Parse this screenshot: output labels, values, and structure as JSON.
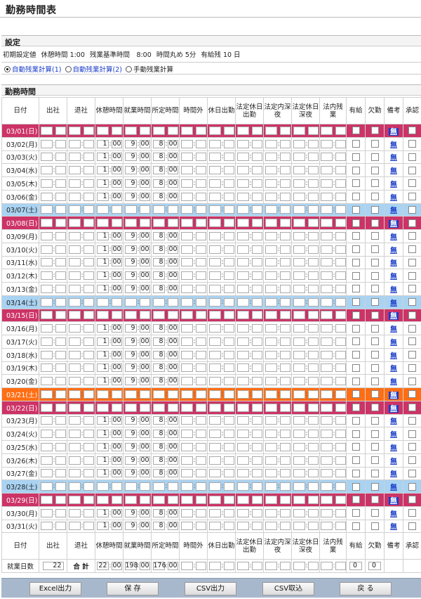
{
  "page_title": "勤務時間表",
  "settings": {
    "section_title": "設定",
    "init_label": "初期設定値",
    "break_time": "休憩時間 1:00",
    "overtime_base": "残業基準時間　8:00",
    "rounding": "時間丸め 5分",
    "paid_leave": "有給残 10 日",
    "radios": [
      {
        "label": "自動残業計算(1)",
        "selected": true
      },
      {
        "label": "自動残業計算(2)",
        "selected": false
      },
      {
        "label": "手動残業計算",
        "selected": false
      }
    ]
  },
  "worktime": {
    "section_title": "勤務時間",
    "headers": [
      "日付",
      "出社",
      "退社",
      "休憩時間",
      "就業時間",
      "所定時間",
      "時間外",
      "休日出勤",
      "法定休日出勤",
      "法定内深夜",
      "法定休日深夜",
      "法内残業",
      "有給",
      "欠勤",
      "備考",
      "承認"
    ],
    "memo_label": "無",
    "rows": [
      {
        "date": "03/01(日)",
        "type": "red"
      },
      {
        "date": "03/02(月)",
        "type": "work",
        "break_h": "1",
        "break_m": "00",
        "work_h": "9",
        "work_m": "00",
        "sched_h": "8",
        "sched_m": "00"
      },
      {
        "date": "03/03(火)",
        "type": "work",
        "break_h": "1",
        "break_m": "00",
        "work_h": "9",
        "work_m": "00",
        "sched_h": "8",
        "sched_m": "00"
      },
      {
        "date": "03/04(水)",
        "type": "work",
        "break_h": "1",
        "break_m": "00",
        "work_h": "9",
        "work_m": "00",
        "sched_h": "8",
        "sched_m": "00"
      },
      {
        "date": "03/05(木)",
        "type": "work",
        "break_h": "1",
        "break_m": "00",
        "work_h": "9",
        "work_m": "00",
        "sched_h": "8",
        "sched_m": "00"
      },
      {
        "date": "03/06(金)",
        "type": "work",
        "break_h": "1",
        "break_m": "00",
        "work_h": "9",
        "work_m": "00",
        "sched_h": "8",
        "sched_m": "00"
      },
      {
        "date": "03/07(土)",
        "type": "blue"
      },
      {
        "date": "03/08(日)",
        "type": "red"
      },
      {
        "date": "03/09(月)",
        "type": "work",
        "break_h": "1",
        "break_m": "00",
        "work_h": "9",
        "work_m": "00",
        "sched_h": "8",
        "sched_m": "00"
      },
      {
        "date": "03/10(火)",
        "type": "work",
        "break_h": "1",
        "break_m": "00",
        "work_h": "9",
        "work_m": "00",
        "sched_h": "8",
        "sched_m": "00"
      },
      {
        "date": "03/11(水)",
        "type": "work",
        "break_h": "1",
        "break_m": "00",
        "work_h": "9",
        "work_m": "00",
        "sched_h": "8",
        "sched_m": "00"
      },
      {
        "date": "03/12(木)",
        "type": "work",
        "break_h": "1",
        "break_m": "00",
        "work_h": "9",
        "work_m": "00",
        "sched_h": "8",
        "sched_m": "00"
      },
      {
        "date": "03/13(金)",
        "type": "work",
        "break_h": "1",
        "break_m": "00",
        "work_h": "9",
        "work_m": "00",
        "sched_h": "8",
        "sched_m": "00"
      },
      {
        "date": "03/14(土)",
        "type": "blue"
      },
      {
        "date": "03/15(日)",
        "type": "red"
      },
      {
        "date": "03/16(月)",
        "type": "work",
        "break_h": "1",
        "break_m": "00",
        "work_h": "9",
        "work_m": "00",
        "sched_h": "8",
        "sched_m": "00"
      },
      {
        "date": "03/17(火)",
        "type": "work",
        "break_h": "1",
        "break_m": "00",
        "work_h": "9",
        "work_m": "00",
        "sched_h": "8",
        "sched_m": "00"
      },
      {
        "date": "03/18(水)",
        "type": "work",
        "break_h": "1",
        "break_m": "00",
        "work_h": "9",
        "work_m": "00",
        "sched_h": "8",
        "sched_m": "00"
      },
      {
        "date": "03/19(木)",
        "type": "work",
        "break_h": "1",
        "break_m": "00",
        "work_h": "9",
        "work_m": "00",
        "sched_h": "8",
        "sched_m": "00"
      },
      {
        "date": "03/20(金)",
        "type": "work",
        "break_h": "1",
        "break_m": "00",
        "work_h": "9",
        "work_m": "00",
        "sched_h": "8",
        "sched_m": "00"
      },
      {
        "date": "03/21(土)",
        "type": "orange"
      },
      {
        "date": "03/22(日)",
        "type": "red"
      },
      {
        "date": "03/23(月)",
        "type": "work",
        "break_h": "1",
        "break_m": "00",
        "work_h": "9",
        "work_m": "00",
        "sched_h": "8",
        "sched_m": "00"
      },
      {
        "date": "03/24(火)",
        "type": "work",
        "break_h": "1",
        "break_m": "00",
        "work_h": "9",
        "work_m": "00",
        "sched_h": "8",
        "sched_m": "00"
      },
      {
        "date": "03/25(水)",
        "type": "work",
        "break_h": "1",
        "break_m": "00",
        "work_h": "9",
        "work_m": "00",
        "sched_h": "8",
        "sched_m": "00"
      },
      {
        "date": "03/26(木)",
        "type": "work",
        "break_h": "1",
        "break_m": "00",
        "work_h": "9",
        "work_m": "00",
        "sched_h": "8",
        "sched_m": "00"
      },
      {
        "date": "03/27(金)",
        "type": "work",
        "break_h": "1",
        "break_m": "00",
        "work_h": "9",
        "work_m": "00",
        "sched_h": "8",
        "sched_m": "00"
      },
      {
        "date": "03/28(土)",
        "type": "blue"
      },
      {
        "date": "03/29(日)",
        "type": "red"
      },
      {
        "date": "03/30(月)",
        "type": "work",
        "break_h": "1",
        "break_m": "00",
        "work_h": "9",
        "work_m": "00",
        "sched_h": "8",
        "sched_m": "00"
      },
      {
        "date": "03/31(火)",
        "type": "work",
        "break_h": "1",
        "break_m": "00",
        "work_h": "9",
        "work_m": "00",
        "sched_h": "8",
        "sched_m": "00"
      }
    ],
    "summary": {
      "label": "就業日数",
      "days": "22",
      "total_label": "合 計",
      "break_h": "22",
      "break_m": "00",
      "work_h": "198",
      "work_m": "00",
      "sched_h": "176",
      "sched_m": "00",
      "paid_leave": "0",
      "absence": "0"
    }
  },
  "buttons": [
    "Excel出力",
    "保 存",
    "CSV出力",
    "CSV取込",
    "戻 る"
  ],
  "colors": {
    "sunday": "#cc3366",
    "saturday": "#a9d3f2",
    "holiday": "#ff6e14",
    "footer": "#a8b8cc"
  }
}
